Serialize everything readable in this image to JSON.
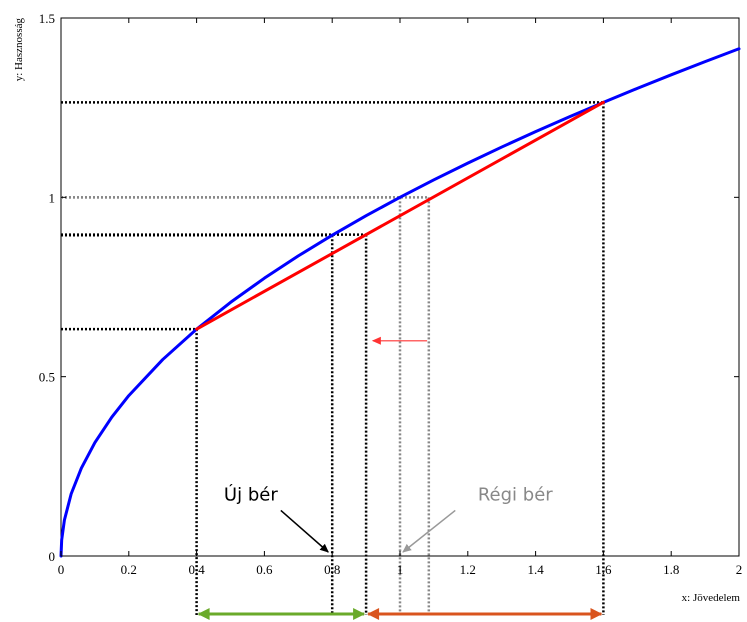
{
  "chart_data": {
    "type": "line",
    "title": "",
    "xlabel": "x: Jövedelem",
    "ylabel": "y: Hasznosság",
    "xlim": [
      0,
      2
    ],
    "ylim": [
      0,
      1.5
    ],
    "xticks": [
      "0",
      "0.2",
      "0.4",
      "0.6",
      "0.8",
      "1",
      "1.2",
      "1.4",
      "1.6",
      "1.8",
      "2"
    ],
    "yticks": [
      "0",
      "0.5",
      "1",
      "1.5"
    ],
    "grid": false,
    "legend": "none",
    "series": [
      {
        "function": "y = sqrt(x)",
        "color": "#0000ff",
        "x": [
          0,
          0.002,
          0.01,
          0.03,
          0.06,
          0.1,
          0.15,
          0.2,
          0.3,
          0.4,
          0.5,
          0.6,
          0.7,
          0.8,
          0.9,
          1.0,
          1.1,
          1.2,
          1.3,
          1.4,
          1.5,
          1.6,
          1.7,
          1.8,
          1.9,
          2.0
        ],
        "y": [
          0,
          0.0447,
          0.1,
          0.1732,
          0.2449,
          0.3162,
          0.3873,
          0.4472,
          0.5477,
          0.6325,
          0.7071,
          0.7746,
          0.8367,
          0.8944,
          0.9487,
          1.0,
          1.0488,
          1.0954,
          1.1402,
          1.1832,
          1.2247,
          1.2649,
          1.3038,
          1.3416,
          1.3784,
          1.4142
        ]
      },
      {
        "function": "chord",
        "color": "#ff0000",
        "x": [
          0.4,
          1.6
        ],
        "y": [
          0.6325,
          1.2649
        ]
      }
    ],
    "guides": [
      {
        "color": "#000000",
        "x": 0.4,
        "y": 0.6325
      },
      {
        "color": "#000000",
        "x": 0.8,
        "y": 0.8944
      },
      {
        "color": "#000000",
        "x": 0.9,
        "y": 0.8961
      },
      {
        "color": "#000000",
        "x": 1.6,
        "y": 1.2649
      },
      {
        "color": "#888888",
        "x": 1.0,
        "y": 1.0
      },
      {
        "color": "#888888",
        "x": 1.085,
        "y": 1.0
      }
    ],
    "red_arrow": {
      "color": "#ff6666",
      "from_x": 1.08,
      "to_x": 0.92,
      "y": 0.6
    },
    "range_arrows": [
      {
        "color": "#6aaa2a",
        "from_x": 0.4,
        "to_x": 0.9
      },
      {
        "color": "#d9541e",
        "from_x": 0.9,
        "to_x": 1.6
      }
    ],
    "annotations": [
      {
        "text": "Új bér",
        "color": "#000000",
        "text_x": 0.56,
        "text_y": 0.155,
        "arrow_to_x": 0.8,
        "arrow_to_y": 0.0
      },
      {
        "text": "Régi bér",
        "color": "#888888",
        "text_x": 1.34,
        "text_y": 0.155,
        "arrow_to_x": 1.0,
        "arrow_to_y": 0.0
      }
    ]
  }
}
